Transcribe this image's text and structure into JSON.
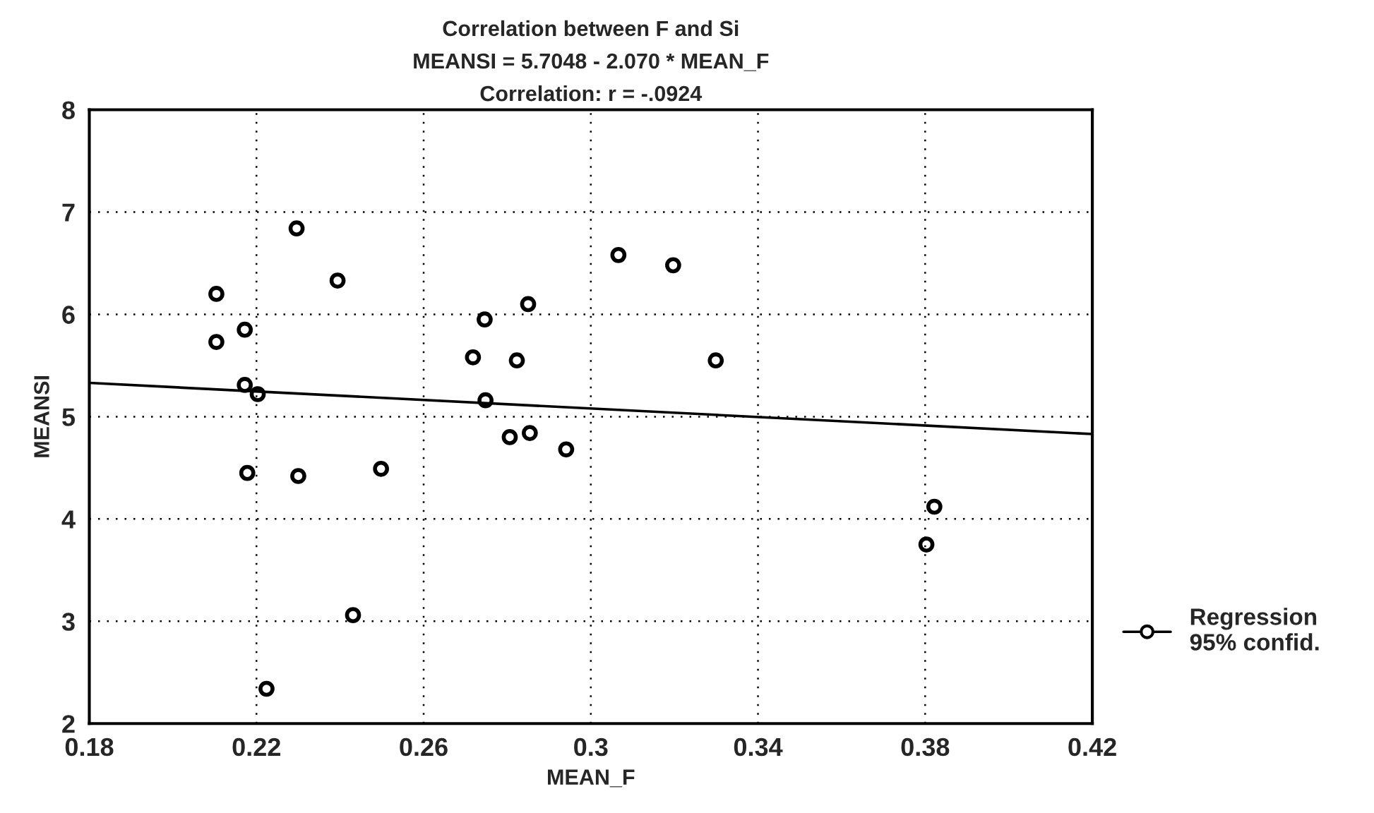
{
  "chart_data": {
    "type": "scatter",
    "title": "Correlation between F and Si",
    "subtitle": "MEANSI = 5.7048 - 2.070 * MEAN_F",
    "annotations": [
      "Correlation: r = -.0924"
    ],
    "xlabel": "MEAN_F",
    "ylabel": "MEANSI",
    "series": [
      {
        "marker": "circle",
        "color": "#000000",
        "x": [
          0.2296,
          0.2394,
          0.2104,
          0.2104,
          0.2172,
          0.2172,
          0.2203,
          0.2178,
          0.23,
          0.2498,
          0.2431,
          0.2224,
          0.2746,
          0.2718,
          0.2748,
          0.2823,
          0.285,
          0.2806,
          0.2854,
          0.2941,
          0.3066,
          0.3197,
          0.3299,
          0.3822,
          0.3803
        ],
        "values": [
          6.84,
          6.33,
          6.2,
          5.73,
          5.85,
          5.31,
          5.22,
          4.45,
          4.42,
          4.49,
          3.06,
          2.34,
          5.95,
          5.58,
          5.16,
          5.55,
          6.1,
          4.8,
          4.84,
          4.68,
          6.58,
          6.48,
          5.55,
          4.12,
          3.75
        ]
      },
      {
        "type": "line",
        "name": "Regression\n95% confid.",
        "color": "#000000",
        "x": [
          0.18,
          0.42
        ],
        "values": [
          5.33,
          4.83
        ]
      }
    ],
    "xlim": [
      0.18,
      0.42
    ],
    "xticks": [
      0.18,
      0.22,
      0.26,
      0.3,
      0.34,
      0.38,
      0.42
    ],
    "ylim": [
      2,
      8
    ],
    "yticks": [
      2,
      3,
      4,
      5,
      6,
      7,
      8
    ],
    "grid": true,
    "legend": "right"
  }
}
